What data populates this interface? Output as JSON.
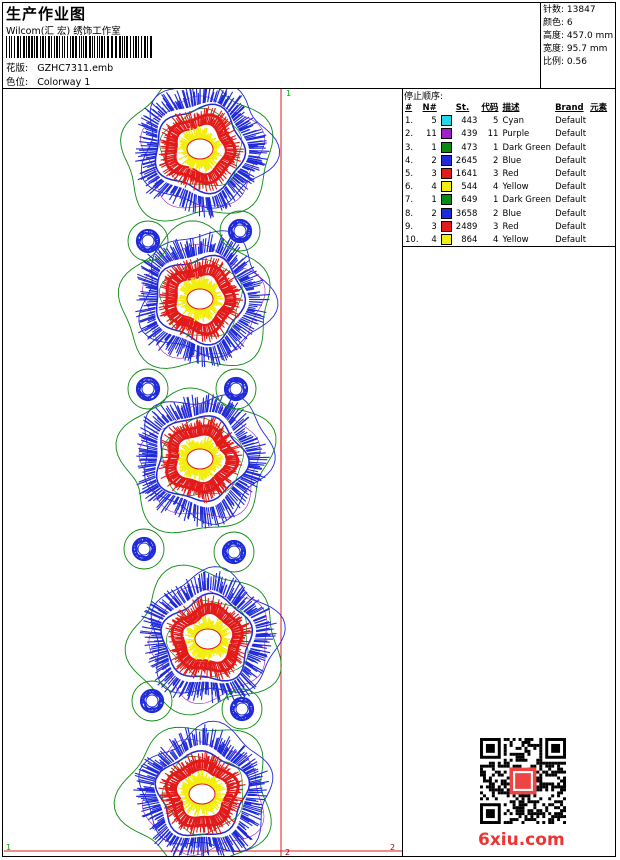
{
  "header": {
    "title": "生产作业图",
    "company": "Wilcom(汇 宏) 绣饰工作室",
    "design_label": "花版:",
    "design_value": "GZHC7311.emb",
    "colorway_label": "色位:",
    "colorway_value": "Colorway 1"
  },
  "stats": [
    {
      "label": "针数:",
      "value": "13847"
    },
    {
      "label": "颜色:",
      "value": "6"
    },
    {
      "label": "高度:",
      "value": "457.0 mm"
    },
    {
      "label": "宽度:",
      "value": "95.7 mm"
    },
    {
      "label": "比例:",
      "value": "0.56"
    }
  ],
  "sequence": {
    "title": "停止顺序:",
    "headers": [
      "#",
      "N#",
      "St.",
      "代码",
      "描述",
      "Brand",
      "元素"
    ],
    "rows": [
      {
        "idx": "1.",
        "n": "5",
        "color": "#25d6e6",
        "st": "443",
        "code": "5",
        "desc": "Cyan",
        "brand": "Default"
      },
      {
        "idx": "2.",
        "n": "11",
        "color": "#a01fc8",
        "st": "439",
        "code": "11",
        "desc": "Purple",
        "brand": "Default"
      },
      {
        "idx": "3.",
        "n": "1",
        "color": "#0b8a12",
        "st": "473",
        "code": "1",
        "desc": "Dark Green",
        "brand": "Default"
      },
      {
        "idx": "4.",
        "n": "2",
        "color": "#1f2ad8",
        "st": "2645",
        "code": "2",
        "desc": "Blue",
        "brand": "Default"
      },
      {
        "idx": "5.",
        "n": "3",
        "color": "#e21a1a",
        "st": "1641",
        "code": "3",
        "desc": "Red",
        "brand": "Default"
      },
      {
        "idx": "6.",
        "n": "4",
        "color": "#f2ee10",
        "st": "544",
        "code": "4",
        "desc": "Yellow",
        "brand": "Default"
      },
      {
        "idx": "7.",
        "n": "1",
        "color": "#0b8a12",
        "st": "649",
        "code": "1",
        "desc": "Dark Green",
        "brand": "Default"
      },
      {
        "idx": "8.",
        "n": "2",
        "color": "#1f2ad8",
        "st": "3658",
        "code": "2",
        "desc": "Blue",
        "brand": "Default"
      },
      {
        "idx": "9.",
        "n": "3",
        "color": "#e21a1a",
        "st": "2489",
        "code": "3",
        "desc": "Red",
        "brand": "Default"
      },
      {
        "idx": "10.",
        "n": "4",
        "color": "#f2ee10",
        "st": "864",
        "code": "4",
        "desc": "Yellow",
        "brand": "Default"
      }
    ]
  },
  "canvas": {
    "marker_top": "1",
    "marker_bottom_left": "1",
    "marker_bottom_mid": "2",
    "marker_bottom_right": "2"
  },
  "watermark": "6xiu.com"
}
